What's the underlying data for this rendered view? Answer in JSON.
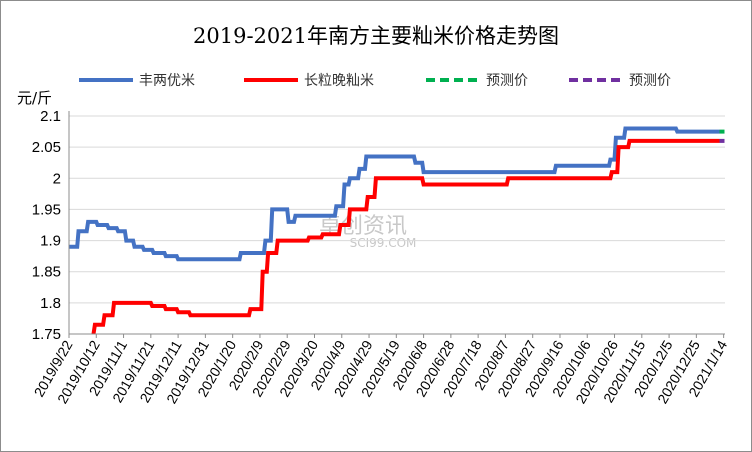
{
  "chart_data": {
    "type": "line",
    "title": "2019-2021年南方主要籼米价格走势图",
    "ylabel": "元/斤",
    "xlabel": "",
    "ylim": [
      1.75,
      2.1
    ],
    "yticks": [
      "1.75",
      "1.8",
      "1.85",
      "1.9",
      "1.95",
      "2",
      "2.05",
      "2.1"
    ],
    "grid": true,
    "legend": "top",
    "x_tick_labels": [
      "2019/9/22",
      "2019/10/12",
      "2019/11/1",
      "2019/11/21",
      "2019/12/11",
      "2019/12/31",
      "2020/1/20",
      "2020/2/9",
      "2020/2/29",
      "2020/3/20",
      "2020/4/9",
      "2020/4/29",
      "2020/5/19",
      "2020/6/8",
      "2020/6/28",
      "2020/7/18",
      "2020/8/7",
      "2020/8/27",
      "2020/9/16",
      "2020/10/6",
      "2020/10/26",
      "2020/11/15",
      "2020/12/5",
      "2020/12/25",
      "2021/1/14"
    ],
    "series": [
      {
        "name": "丰两优米",
        "color": "#4472C4",
        "style": "solid",
        "points": [
          [
            "2019/9/22",
            1.89
          ],
          [
            "2019/9/28",
            1.89
          ],
          [
            "2019/9/29",
            1.915
          ],
          [
            "2019/10/5",
            1.915
          ],
          [
            "2019/10/6",
            1.93
          ],
          [
            "2019/10/12",
            1.93
          ],
          [
            "2019/10/13",
            1.925
          ],
          [
            "2019/10/20",
            1.925
          ],
          [
            "2019/10/21",
            1.92
          ],
          [
            "2019/10/27",
            1.92
          ],
          [
            "2019/10/28",
            1.915
          ],
          [
            "2019/11/2",
            1.915
          ],
          [
            "2019/11/3",
            1.9
          ],
          [
            "2019/11/8",
            1.9
          ],
          [
            "2019/11/9",
            1.89
          ],
          [
            "2019/11/15",
            1.89
          ],
          [
            "2019/11/16",
            1.885
          ],
          [
            "2019/11/22",
            1.885
          ],
          [
            "2019/11/23",
            1.88
          ],
          [
            "2019/12/1",
            1.88
          ],
          [
            "2019/12/2",
            1.875
          ],
          [
            "2019/12/10",
            1.875
          ],
          [
            "2019/12/11",
            1.87
          ],
          [
            "2020/1/25",
            1.87
          ],
          [
            "2020/1/26",
            1.88
          ],
          [
            "2020/2/12",
            1.88
          ],
          [
            "2020/2/13",
            1.9
          ],
          [
            "2020/2/17",
            1.9
          ],
          [
            "2020/2/18",
            1.95
          ],
          [
            "2020/2/29",
            1.95
          ],
          [
            "2020/3/1",
            1.93
          ],
          [
            "2020/3/5",
            1.93
          ],
          [
            "2020/3/6",
            1.94
          ],
          [
            "2020/4/4",
            1.94
          ],
          [
            "2020/4/5",
            1.955
          ],
          [
            "2020/4/10",
            1.955
          ],
          [
            "2020/4/11",
            1.99
          ],
          [
            "2020/4/14",
            1.99
          ],
          [
            "2020/4/15",
            2.0
          ],
          [
            "2020/4/21",
            2.0
          ],
          [
            "2020/4/22",
            2.015
          ],
          [
            "2020/4/26",
            2.015
          ],
          [
            "2020/4/27",
            2.035
          ],
          [
            "2020/6/1",
            2.035
          ],
          [
            "2020/6/2",
            2.025
          ],
          [
            "2020/6/7",
            2.025
          ],
          [
            "2020/6/8",
            2.01
          ],
          [
            "2020/9/12",
            2.01
          ],
          [
            "2020/9/13",
            2.02
          ],
          [
            "2020/10/22",
            2.02
          ],
          [
            "2020/10/23",
            2.03
          ],
          [
            "2020/10/26",
            2.03
          ],
          [
            "2020/10/27",
            2.065
          ],
          [
            "2020/11/2",
            2.065
          ],
          [
            "2020/11/3",
            2.08
          ],
          [
            "2020/12/10",
            2.08
          ],
          [
            "2020/12/11",
            2.075
          ],
          [
            "2021/1/11",
            2.075
          ]
        ]
      },
      {
        "name": "长粒晚籼米",
        "color": "#FF0000",
        "style": "solid",
        "points": [
          [
            "2019/10/10",
            1.75
          ],
          [
            "2019/10/11",
            1.765
          ],
          [
            "2019/10/17",
            1.765
          ],
          [
            "2019/10/18",
            1.78
          ],
          [
            "2019/10/24",
            1.78
          ],
          [
            "2019/10/25",
            1.8
          ],
          [
            "2019/11/21",
            1.8
          ],
          [
            "2019/11/22",
            1.795
          ],
          [
            "2019/12/1",
            1.795
          ],
          [
            "2019/12/2",
            1.79
          ],
          [
            "2019/12/10",
            1.79
          ],
          [
            "2019/12/11",
            1.785
          ],
          [
            "2019/12/19",
            1.785
          ],
          [
            "2019/12/20",
            1.78
          ],
          [
            "2020/2/1",
            1.78
          ],
          [
            "2020/2/2",
            1.79
          ],
          [
            "2020/2/10",
            1.79
          ],
          [
            "2020/2/11",
            1.85
          ],
          [
            "2020/2/14",
            1.85
          ],
          [
            "2020/2/15",
            1.88
          ],
          [
            "2020/2/21",
            1.88
          ],
          [
            "2020/2/22",
            1.9
          ],
          [
            "2020/3/15",
            1.9
          ],
          [
            "2020/3/16",
            1.905
          ],
          [
            "2020/3/25",
            1.905
          ],
          [
            "2020/3/26",
            1.91
          ],
          [
            "2020/4/7",
            1.91
          ],
          [
            "2020/4/8",
            1.925
          ],
          [
            "2020/4/14",
            1.925
          ],
          [
            "2020/4/15",
            1.95
          ],
          [
            "2020/4/27",
            1.95
          ],
          [
            "2020/4/28",
            1.97
          ],
          [
            "2020/5/3",
            1.97
          ],
          [
            "2020/5/4",
            2.0
          ],
          [
            "2020/6/7",
            2.0
          ],
          [
            "2020/6/8",
            1.99
          ],
          [
            "2020/8/8",
            1.99
          ],
          [
            "2020/8/9",
            2.0
          ],
          [
            "2020/10/23",
            2.0
          ],
          [
            "2020/10/24",
            2.01
          ],
          [
            "2020/10/28",
            2.01
          ],
          [
            "2020/10/29",
            2.05
          ],
          [
            "2020/11/5",
            2.05
          ],
          [
            "2020/11/6",
            2.06
          ],
          [
            "2021/1/11",
            2.06
          ]
        ]
      },
      {
        "name": "预测价",
        "color": "#00B050",
        "style": "dashed",
        "points": [
          [
            "2021/1/11",
            2.075
          ],
          [
            "2021/1/15",
            2.075
          ]
        ]
      },
      {
        "name": "预测价",
        "color": "#7030A0",
        "style": "dashed",
        "points": [
          [
            "2021/1/11",
            2.06
          ],
          [
            "2021/1/15",
            2.06
          ]
        ]
      }
    ],
    "watermark": "卓创资讯",
    "watermark_sub": "SCI99.COM"
  }
}
